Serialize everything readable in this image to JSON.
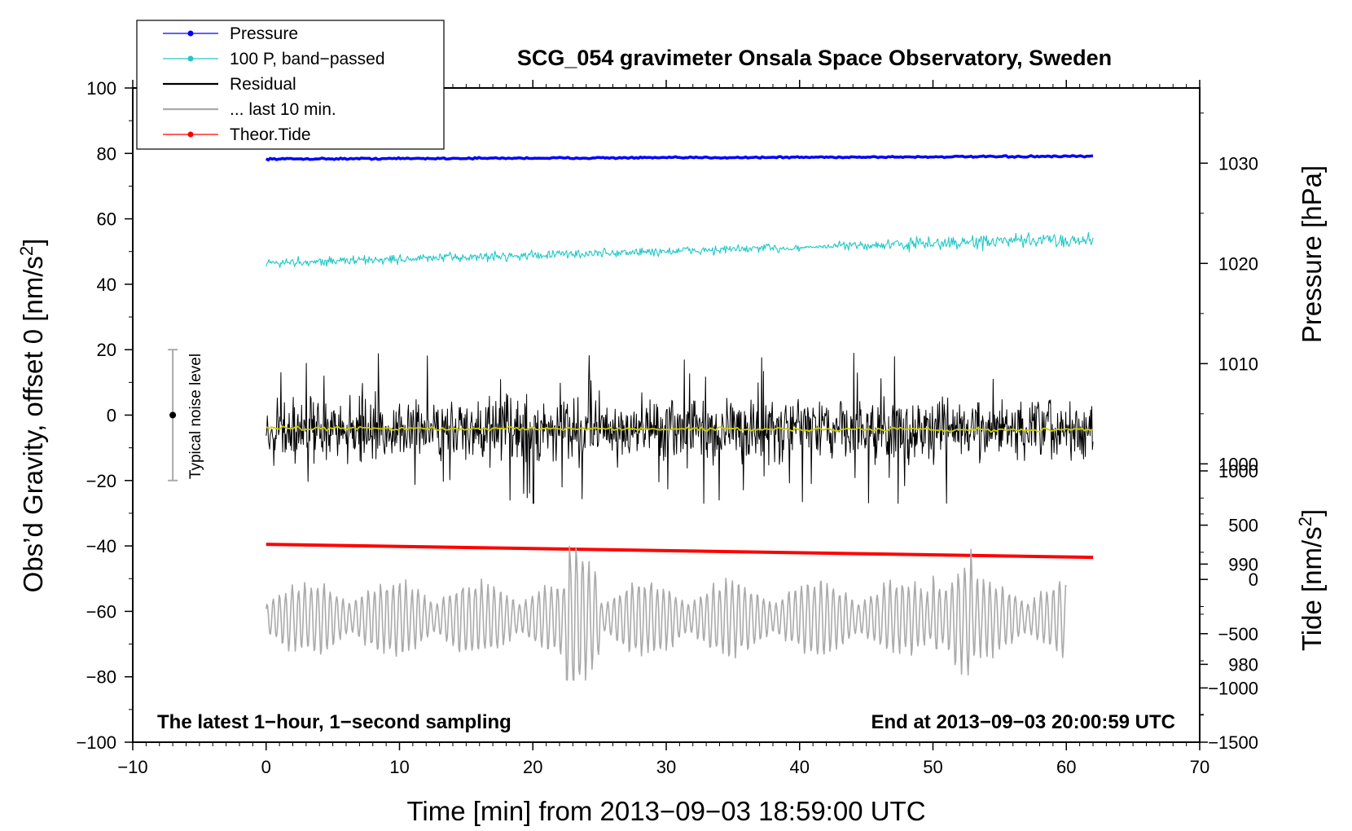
{
  "chart_data": {
    "type": "line",
    "title": "SCG_054 gravimeter Onsala Space Observatory, Sweden",
    "xlabel": "Time [min] from 2013−09−03 18:59:00 UTC",
    "ylabel": "Obs’d Gravity, offset 0 [nm/s²]",
    "ylabel_main": "Obs’d Gravity, offset 0 [nm/s",
    "ylabel_sup": "2",
    "ylabel_end": "]",
    "xlim": [
      -10,
      70
    ],
    "ylim": [
      -100,
      100
    ],
    "x_ticks": [
      -10,
      0,
      10,
      20,
      30,
      40,
      50,
      60,
      70
    ],
    "x_tick_labels": [
      "−10",
      "0",
      "10",
      "20",
      "30",
      "40",
      "50",
      "60",
      "70"
    ],
    "y_ticks": [
      -100,
      -80,
      -60,
      -40,
      -20,
      0,
      20,
      40,
      60,
      80,
      100
    ],
    "y_tick_labels": [
      "−100",
      "−80",
      "−60",
      "−40",
      "−20",
      "0",
      "20",
      "40",
      "60",
      "80",
      "100"
    ],
    "right_axis_pressure": {
      "label": "Pressure [hPa]",
      "ticks": [
        980,
        990,
        1000,
        1010,
        1020,
        1030
      ],
      "tick_labels": [
        "980",
        "990",
        "1000",
        "1010",
        "1020",
        "1030"
      ],
      "range_hpa": [
        971.5,
        1037.5
      ]
    },
    "right_axis_tide": {
      "label_main": "Tide [nm/s",
      "label_sup": "2",
      "label_end": "]",
      "ticks": [
        -1500,
        -1000,
        -500,
        0,
        500,
        1000
      ],
      "tick_labels": [
        "−1500",
        "−1000",
        "−500",
        "0",
        "500",
        "1000"
      ],
      "range": [
        -1500,
        1000
      ]
    },
    "legend": [
      {
        "label": "Pressure",
        "color": "#0000ff",
        "marker": true
      },
      {
        "label": "100 P, band−passed",
        "color": "#22c8c8",
        "marker": true
      },
      {
        "label": "Residual",
        "color": "#000000",
        "marker": false
      },
      {
        "label": "... last 10 min.",
        "color": "#aaaaaa",
        "marker": false
      },
      {
        "label": "Theor.Tide",
        "color": "#ff0000",
        "marker": true
      }
    ],
    "noise_bar": {
      "x": -7,
      "center": 0,
      "low": -20,
      "high": 20,
      "label": "Typical noise level",
      "color": "#aaaaaa"
    },
    "series": [
      {
        "name": "Pressure",
        "color": "#0000ff",
        "x_range": [
          0,
          62
        ],
        "y_start": 78.3,
        "y_end": 79.1,
        "noise": 0.2,
        "style": "thick"
      },
      {
        "name": "100 P, band-passed",
        "color": "#22c8c8",
        "x_range": [
          0,
          62
        ],
        "y_start": 46.5,
        "y_end": 53.5,
        "noise": 1.2,
        "style": "thin"
      },
      {
        "name": "Residual",
        "color": "#000000",
        "x_range": [
          0,
          62
        ],
        "y_center": -4.5,
        "amplitude_typical": 8,
        "y_min": -27,
        "y_max": 21.5,
        "style": "noise"
      },
      {
        "name": "Residual smoothed",
        "color": "#cccc00",
        "x_range": [
          0,
          62
        ],
        "y_start": -4,
        "y_end": -4.5,
        "style": "thin"
      },
      {
        "name": "Theor.Tide",
        "color": "#ff0000",
        "x_range": [
          0,
          62
        ],
        "y_start": -39.5,
        "y_end": -43.5,
        "style": "thick"
      },
      {
        "name": "... last 10 min.",
        "color": "#aaaaaa",
        "x_range": [
          0,
          60
        ],
        "y_center": -62,
        "amplitude_typical": 8,
        "y_min": -81,
        "y_max": -36,
        "style": "oscillation"
      }
    ]
  },
  "notes": {
    "left": "The latest 1−hour, 1−second sampling",
    "right": "End at 2013−09−03 20:00:59 UTC"
  },
  "colors": {
    "pressure": "#0000ff",
    "band_passed": "#22c8c8",
    "residual": "#000000",
    "smoothed": "#cccc00",
    "last10": "#aaaaaa",
    "tide": "#ff0000"
  }
}
